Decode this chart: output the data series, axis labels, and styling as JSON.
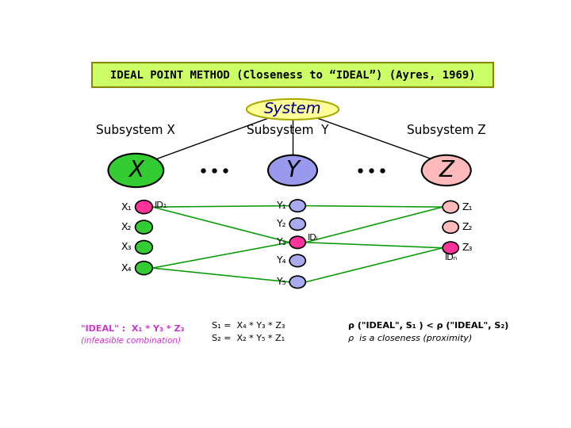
{
  "title": "IDEAL POINT METHOD (Closeness to “IDEAL”) (Ayres, 1969)",
  "bg_color": "#ffffff",
  "title_box_color": "#ccff66",
  "system_ellipse_color": "#ffff99",
  "subsystem_x_text": "Subsystem X",
  "subsystem_y_text": "Subsystem  Y",
  "subsystem_z_text": "Subsystem Z",
  "x_ellipse_color": "#33cc33",
  "y_ellipse_color": "#9999ee",
  "z_ellipse_color": "#ffbbbb",
  "x1_node_color": "#ff3399",
  "x2_node_color": "#33cc33",
  "x3_node_color": "#33cc33",
  "x4_node_color": "#33cc33",
  "y1_node_color": "#aaaaee",
  "y2_node_color": "#aaaaee",
  "y3_node_color": "#ff3399",
  "y4_node_color": "#aaaaee",
  "y5_node_color": "#aaaaee",
  "z1_node_color": "#ffbbbb",
  "z2_node_color": "#ffbbbb",
  "z3_node_color": "#ff3399",
  "line_color": "#009900",
  "bottom_left_color": "#cc33cc"
}
